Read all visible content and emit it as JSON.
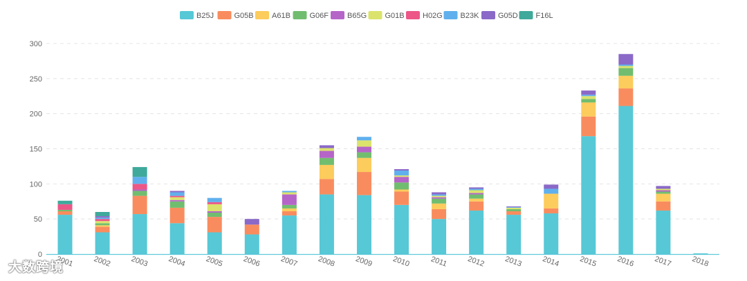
{
  "watermark": "大数跨境",
  "chart_data": {
    "type": "bar",
    "stacked": true,
    "title": "",
    "xlabel": "",
    "ylabel": "",
    "ylim": [
      0,
      300
    ],
    "yticks": [
      0,
      50,
      100,
      150,
      200,
      250,
      300
    ],
    "grid": true,
    "legend_position": "top-center",
    "categories": [
      "2001",
      "2002",
      "2003",
      "2004",
      "2005",
      "2006",
      "2007",
      "2008",
      "2009",
      "2010",
      "2011",
      "2012",
      "2013",
      "2014",
      "2015",
      "2016",
      "2017",
      "2018"
    ],
    "series": [
      {
        "name": "B25J",
        "color": "#57c8d6",
        "values": [
          56,
          31,
          57,
          44,
          31,
          28,
          55,
          85,
          84,
          70,
          50,
          62,
          56,
          58,
          168,
          211,
          62,
          1
        ]
      },
      {
        "name": "G05B",
        "color": "#f98c5e",
        "values": [
          5,
          8,
          26,
          22,
          22,
          14,
          6,
          22,
          33,
          19,
          14,
          13,
          5,
          7,
          28,
          25,
          13,
          0
        ]
      },
      {
        "name": "A61B",
        "color": "#fccc5c",
        "values": [
          0,
          2,
          0,
          0,
          0,
          0,
          4,
          20,
          20,
          3,
          8,
          4,
          0,
          21,
          20,
          18,
          11,
          0
        ]
      },
      {
        "name": "G06F",
        "color": "#71bd6f",
        "values": [
          2,
          3,
          7,
          9,
          6,
          0,
          5,
          10,
          8,
          10,
          7,
          6,
          3,
          0,
          5,
          11,
          3,
          0
        ]
      },
      {
        "name": "B65G",
        "color": "#b565c8",
        "values": [
          0,
          0,
          2,
          2,
          2,
          0,
          15,
          10,
          8,
          8,
          2,
          2,
          0,
          0,
          0,
          0,
          2,
          0
        ]
      },
      {
        "name": "G01B",
        "color": "#dbe36c",
        "values": [
          0,
          3,
          0,
          4,
          10,
          0,
          3,
          4,
          9,
          2,
          2,
          4,
          2,
          0,
          4,
          3,
          2,
          0
        ]
      },
      {
        "name": "H02G",
        "color": "#ec5787",
        "values": [
          8,
          3,
          8,
          2,
          3,
          0,
          0,
          0,
          0,
          0,
          0,
          0,
          0,
          0,
          0,
          0,
          0,
          0
        ]
      },
      {
        "name": "B23K",
        "color": "#60b0ed",
        "values": [
          0,
          2,
          10,
          5,
          6,
          0,
          2,
          0,
          5,
          7,
          2,
          2,
          1,
          7,
          2,
          2,
          0,
          0
        ]
      },
      {
        "name": "G05D",
        "color": "#8a69c8",
        "values": [
          0,
          2,
          0,
          2,
          0,
          8,
          0,
          4,
          0,
          2,
          3,
          2,
          1,
          6,
          6,
          15,
          4,
          0
        ]
      },
      {
        "name": "F16L",
        "color": "#3fa99b",
        "values": [
          5,
          6,
          14,
          0,
          0,
          0,
          0,
          0,
          0,
          0,
          0,
          0,
          0,
          0,
          0,
          0,
          0,
          0
        ]
      }
    ]
  }
}
